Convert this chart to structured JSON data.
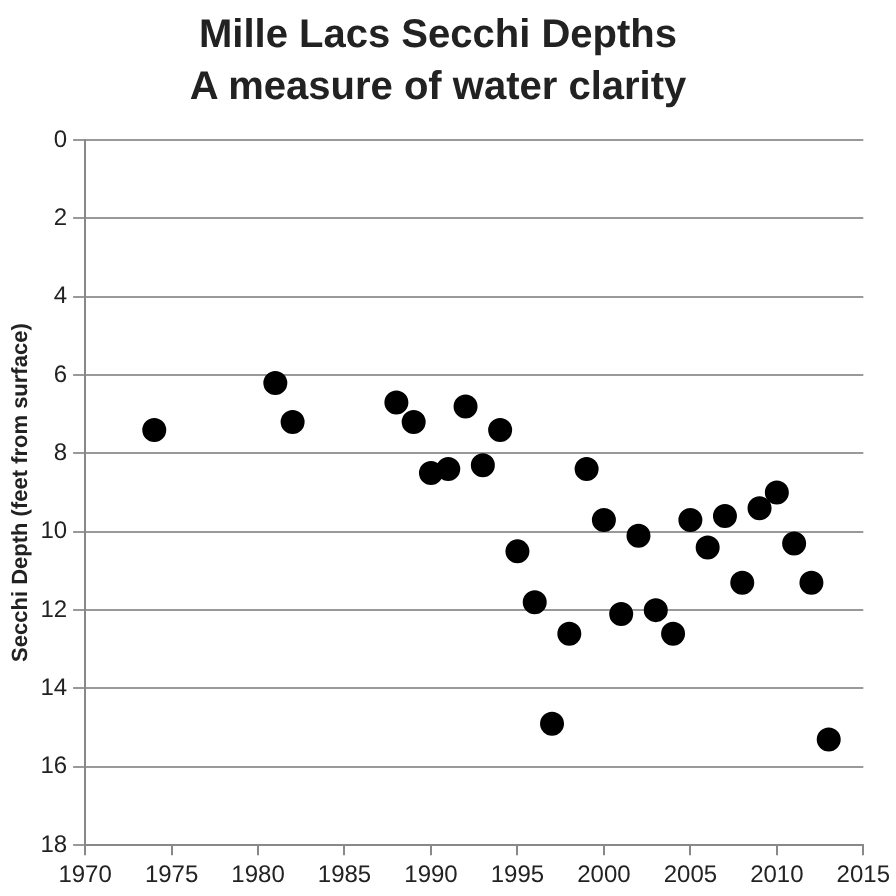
{
  "chart_data": {
    "type": "scatter",
    "title": "Mille Lacs Secchi Depths",
    "subtitle": "A measure of water clarity",
    "ylabel": "Secchi Depth (feet from surface)",
    "x": [
      1974,
      1981,
      1982,
      1988,
      1989,
      1990,
      1991,
      1992,
      1993,
      1994,
      1995,
      1996,
      1997,
      1998,
      1999,
      2000,
      2001,
      2002,
      2003,
      2004,
      2005,
      2006,
      2007,
      2008,
      2009,
      2010,
      2011,
      2012,
      2013
    ],
    "values": [
      7.4,
      6.2,
      7.2,
      6.7,
      7.2,
      8.5,
      8.4,
      6.8,
      8.3,
      7.4,
      10.5,
      11.8,
      14.9,
      12.6,
      8.4,
      9.7,
      12.1,
      10.1,
      12.0,
      12.6,
      9.7,
      10.4,
      9.6,
      11.3,
      9.4,
      9.0,
      10.3,
      11.3,
      15.3
    ],
    "color": "#000000",
    "marker": "circle",
    "xlim": [
      1970,
      2015
    ],
    "xticks": [
      1970,
      1975,
      1980,
      1985,
      1990,
      1995,
      2000,
      2005,
      2010,
      2015
    ],
    "ylim": [
      18,
      0
    ],
    "yticks": [
      0,
      2,
      4,
      6,
      8,
      10,
      12,
      14,
      16,
      18
    ],
    "grid": "y",
    "legend": false
  }
}
